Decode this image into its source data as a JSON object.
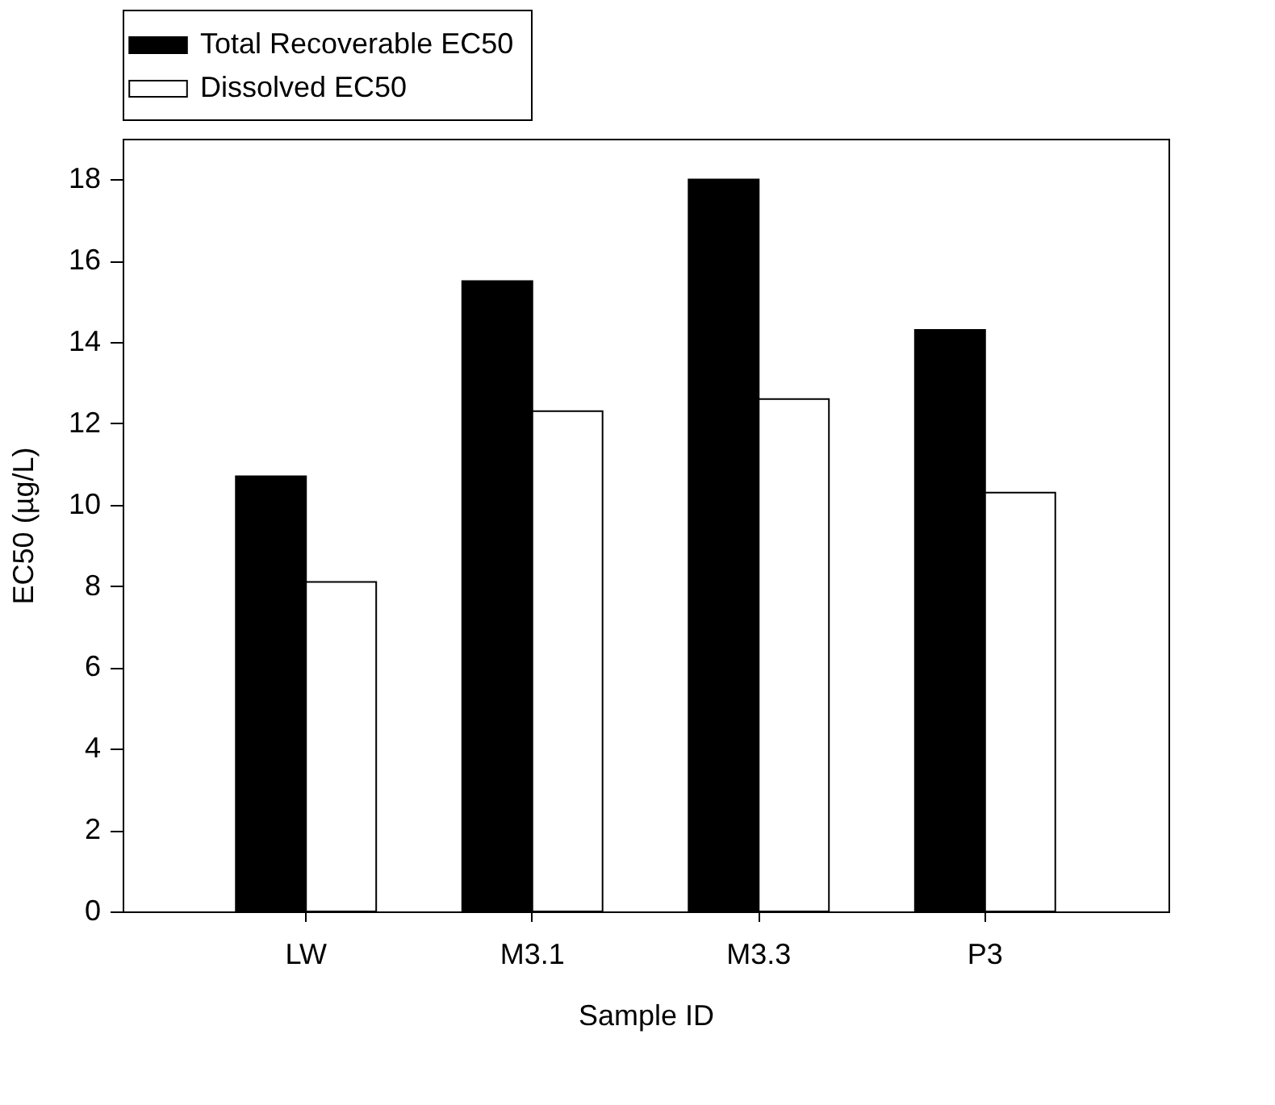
{
  "chart_data": {
    "type": "bar",
    "xlabel": "Sample ID",
    "ylabel": "EC50 (µg/L)",
    "categories": [
      "LW",
      "M3.1",
      "M3.3",
      "P3"
    ],
    "series": [
      {
        "name": "Total Recoverable EC50",
        "color": "#000000",
        "values": [
          10.7,
          15.5,
          18.0,
          14.3
        ]
      },
      {
        "name": "Dissolved EC50",
        "color": "#ffffff",
        "values": [
          8.1,
          12.3,
          12.6,
          10.3
        ]
      }
    ],
    "ylim": [
      0,
      19
    ],
    "yticks": [
      0,
      2,
      4,
      6,
      8,
      10,
      12,
      14,
      16,
      18
    ],
    "grid": false,
    "legend": "top"
  }
}
